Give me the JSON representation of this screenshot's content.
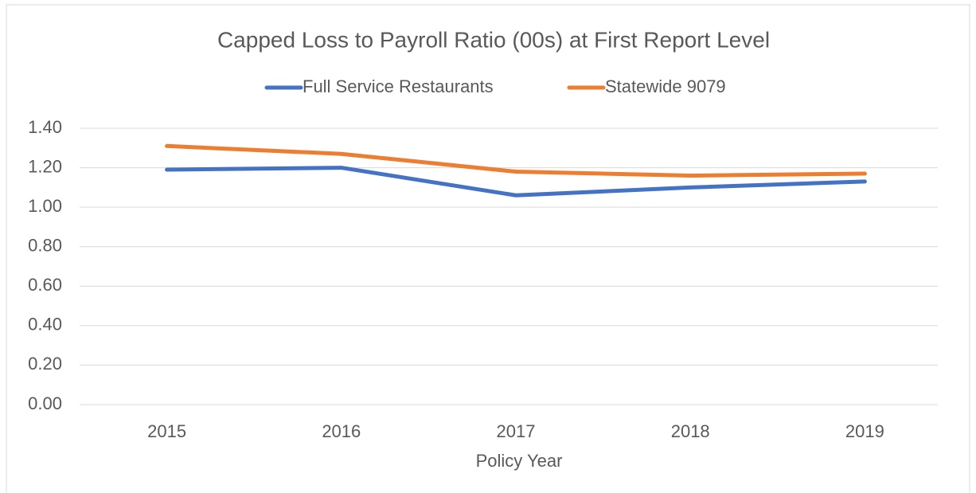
{
  "chart_data": {
    "type": "line",
    "title": "Capped Loss to Payroll Ratio (00s) at First Report Level",
    "x_label": "Policy Year",
    "categories": [
      "2015",
      "2016",
      "2017",
      "2018",
      "2019"
    ],
    "series": [
      {
        "name": "Full Service Restaurants",
        "color": "#4472c4",
        "values": [
          1.19,
          1.2,
          1.06,
          1.1,
          1.13
        ]
      },
      {
        "name": "Statewide 9079",
        "color": "#ed7d31",
        "values": [
          1.31,
          1.27,
          1.18,
          1.16,
          1.17
        ]
      }
    ],
    "ylim": [
      0,
      1.4
    ],
    "yticks": [
      {
        "value": 0,
        "label": "0.00"
      },
      {
        "value": 0.2,
        "label": "0.20"
      },
      {
        "value": 0.4,
        "label": "0.40"
      },
      {
        "value": 0.6,
        "label": "0.60"
      },
      {
        "value": 0.8,
        "label": "0.80"
      },
      {
        "value": 1.0,
        "label": "1.00"
      },
      {
        "value": 1.2,
        "label": "1.20"
      },
      {
        "value": 1.4,
        "label": "1.40"
      }
    ],
    "grid": true,
    "legend": "top"
  }
}
